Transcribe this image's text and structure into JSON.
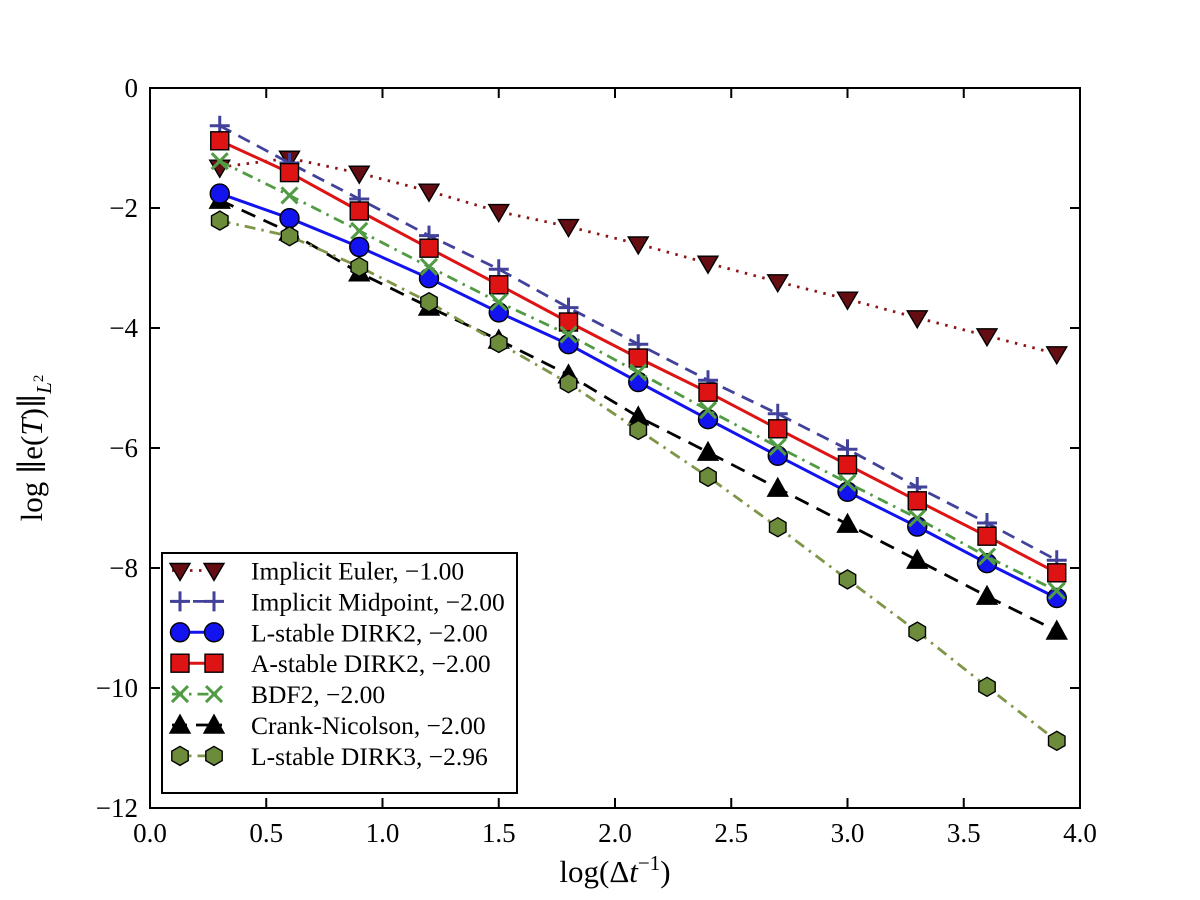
{
  "figure": {
    "background": "#ffffff",
    "axes": {
      "xlabel": {
        "pre": "log(Δ",
        "var": "t",
        "sup": "−1",
        "post": ")"
      },
      "ylabel": {
        "pre": "log ∥e(",
        "var": "T",
        "post": ")∥",
        "sub": "L",
        "sub_sup": "2"
      },
      "xtick_labels": [
        "0.0",
        "0.5",
        "1.0",
        "1.5",
        "2.0",
        "2.5",
        "3.0",
        "3.5",
        "4.0"
      ],
      "ytick_labels": [
        "0",
        "−2",
        "−4",
        "−6",
        "−8",
        "−10",
        "−12"
      ],
      "xticks": [
        0.0,
        0.5,
        1.0,
        1.5,
        2.0,
        2.5,
        3.0,
        3.5,
        4.0
      ],
      "yticks": [
        0,
        -2,
        -4,
        -6,
        -8,
        -10,
        -12
      ],
      "xlim": [
        0.0,
        4.0
      ],
      "ylim": [
        -12,
        0
      ],
      "grid": false,
      "tick_direction": "in",
      "spine_color": "#000000"
    },
    "legend": {
      "position": "lower-left",
      "border_color": "#000000",
      "background": "#ffffff"
    }
  },
  "chart_data": {
    "type": "line",
    "title": "",
    "xlabel": "log(Δt^-1)",
    "ylabel": "log ||e(T)||_L2",
    "xlim": [
      0.0,
      4.0
    ],
    "ylim": [
      -12,
      0
    ],
    "grid": false,
    "legend_position": "lower-left",
    "x": [
      0.3,
      0.6,
      0.9,
      1.2,
      1.5,
      1.8,
      2.1,
      2.4,
      2.7,
      3.0,
      3.3,
      3.6,
      3.9
    ],
    "series": [
      {
        "name": "Implicit Euler, −1.00",
        "fitted_slope": "−1.00",
        "marker": "triangle-down",
        "line_style": "dotted",
        "dash": "2.5 6.5",
        "color": "#8b1515",
        "marker_fill": "#640d12",
        "values": [
          -1.32,
          -1.17,
          -1.42,
          -1.72,
          -2.06,
          -2.31,
          -2.6,
          -2.92,
          -3.23,
          -3.52,
          -3.83,
          -4.13,
          -4.43
        ]
      },
      {
        "name": "Implicit Midpoint, −2.00",
        "fitted_slope": "−2.00",
        "marker": "plus",
        "line_style": "dashed",
        "dash": "13 8",
        "color": "#42429b",
        "marker_fill": "#42429b",
        "values": [
          -0.63,
          -1.25,
          -1.85,
          -2.46,
          -3.02,
          -3.66,
          -4.27,
          -4.87,
          -5.43,
          -6.02,
          -6.65,
          -7.25,
          -7.87
        ]
      },
      {
        "name": "L-stable DIRK2, −2.00",
        "fitted_slope": "−2.00",
        "marker": "circle",
        "line_style": "solid",
        "dash": null,
        "color": "#1313ef",
        "marker_fill": "#1313ef",
        "values": [
          -1.76,
          -2.17,
          -2.65,
          -3.17,
          -3.74,
          -4.27,
          -4.9,
          -5.52,
          -6.13,
          -6.73,
          -7.31,
          -7.92,
          -8.5
        ]
      },
      {
        "name": "A-stable DIRK2, −2.00",
        "fitted_slope": "−2.00",
        "marker": "square",
        "line_style": "solid",
        "dash": null,
        "color": "#de1414",
        "marker_fill": "#de1414",
        "values": [
          -0.88,
          -1.41,
          -2.05,
          -2.67,
          -3.28,
          -3.9,
          -4.5,
          -5.07,
          -5.68,
          -6.28,
          -6.88,
          -7.47,
          -8.08
        ]
      },
      {
        "name": "BDF2, −2.00",
        "fitted_slope": "−2.00",
        "marker": "x",
        "line_style": "dashdot",
        "dash": "11 6 2.5 6",
        "color": "#509b43",
        "marker_fill": "#509b43",
        "values": [
          -1.22,
          -1.79,
          -2.38,
          -2.98,
          -3.57,
          -4.11,
          -4.74,
          -5.37,
          -5.98,
          -6.58,
          -7.17,
          -7.81,
          -8.38
        ]
      },
      {
        "name": "Crank-Nicolson, −2.00",
        "fitted_slope": "−2.00",
        "marker": "triangle-up",
        "line_style": "dashed",
        "dash": "15 9",
        "color": "#000000",
        "marker_fill": "#000000",
        "values": [
          -1.87,
          -2.4,
          -3.08,
          -3.65,
          -4.2,
          -4.78,
          -5.48,
          -6.07,
          -6.67,
          -7.27,
          -7.87,
          -8.47,
          -9.05
        ]
      },
      {
        "name": "L-stable DIRK3, −2.96",
        "fitted_slope": "−2.96",
        "marker": "hexagon",
        "line_style": "dashdot",
        "dash": "11 6 2.5 6",
        "color": "#7f9649",
        "marker_fill": "#6c8c3c",
        "values": [
          -2.21,
          -2.47,
          -2.98,
          -3.57,
          -4.25,
          -4.92,
          -5.7,
          -6.48,
          -7.32,
          -8.19,
          -9.06,
          -9.98,
          -10.88
        ]
      }
    ]
  }
}
